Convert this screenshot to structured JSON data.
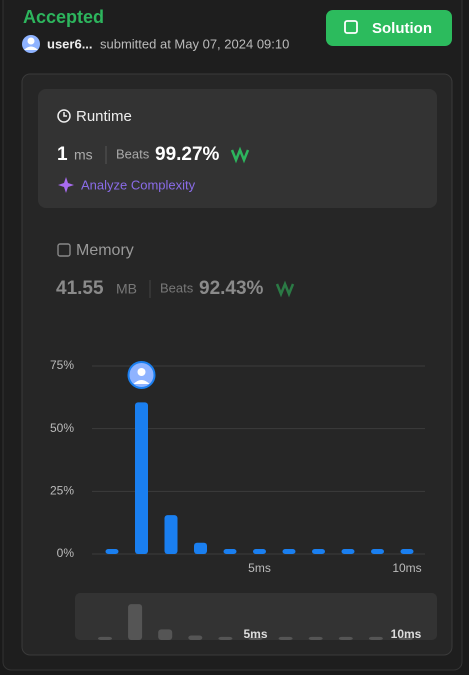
{
  "header": {
    "status": "Accepted",
    "user": "user6...",
    "submitted": "submitted at May 07, 2024 09:10",
    "button": "Solution"
  },
  "runtime": {
    "title": "Runtime",
    "value": "1",
    "unit": "ms",
    "beats_label": "Beats",
    "beats": "99.27%",
    "analyze": "Analyze Complexity"
  },
  "memory": {
    "title": "Memory",
    "value": "41.55",
    "unit": "MB",
    "beats_label": "Beats",
    "beats": "92.43%"
  },
  "chart_data": {
    "type": "bar",
    "categories": [
      null,
      null,
      null,
      null,
      null,
      "5ms",
      null,
      null,
      null,
      null,
      "10ms"
    ],
    "values": [
      2,
      60.5,
      15.5,
      4.5,
      2,
      2,
      2,
      2,
      2,
      2,
      2
    ],
    "color": "#1a7ff0",
    "ylim": [
      0,
      75
    ],
    "yticks": [
      {
        "value": 0,
        "label": "0%"
      },
      {
        "value": 25,
        "label": "25%"
      },
      {
        "value": 50,
        "label": "50%"
      },
      {
        "value": 75,
        "label": "75%"
      }
    ],
    "grid": true
  }
}
